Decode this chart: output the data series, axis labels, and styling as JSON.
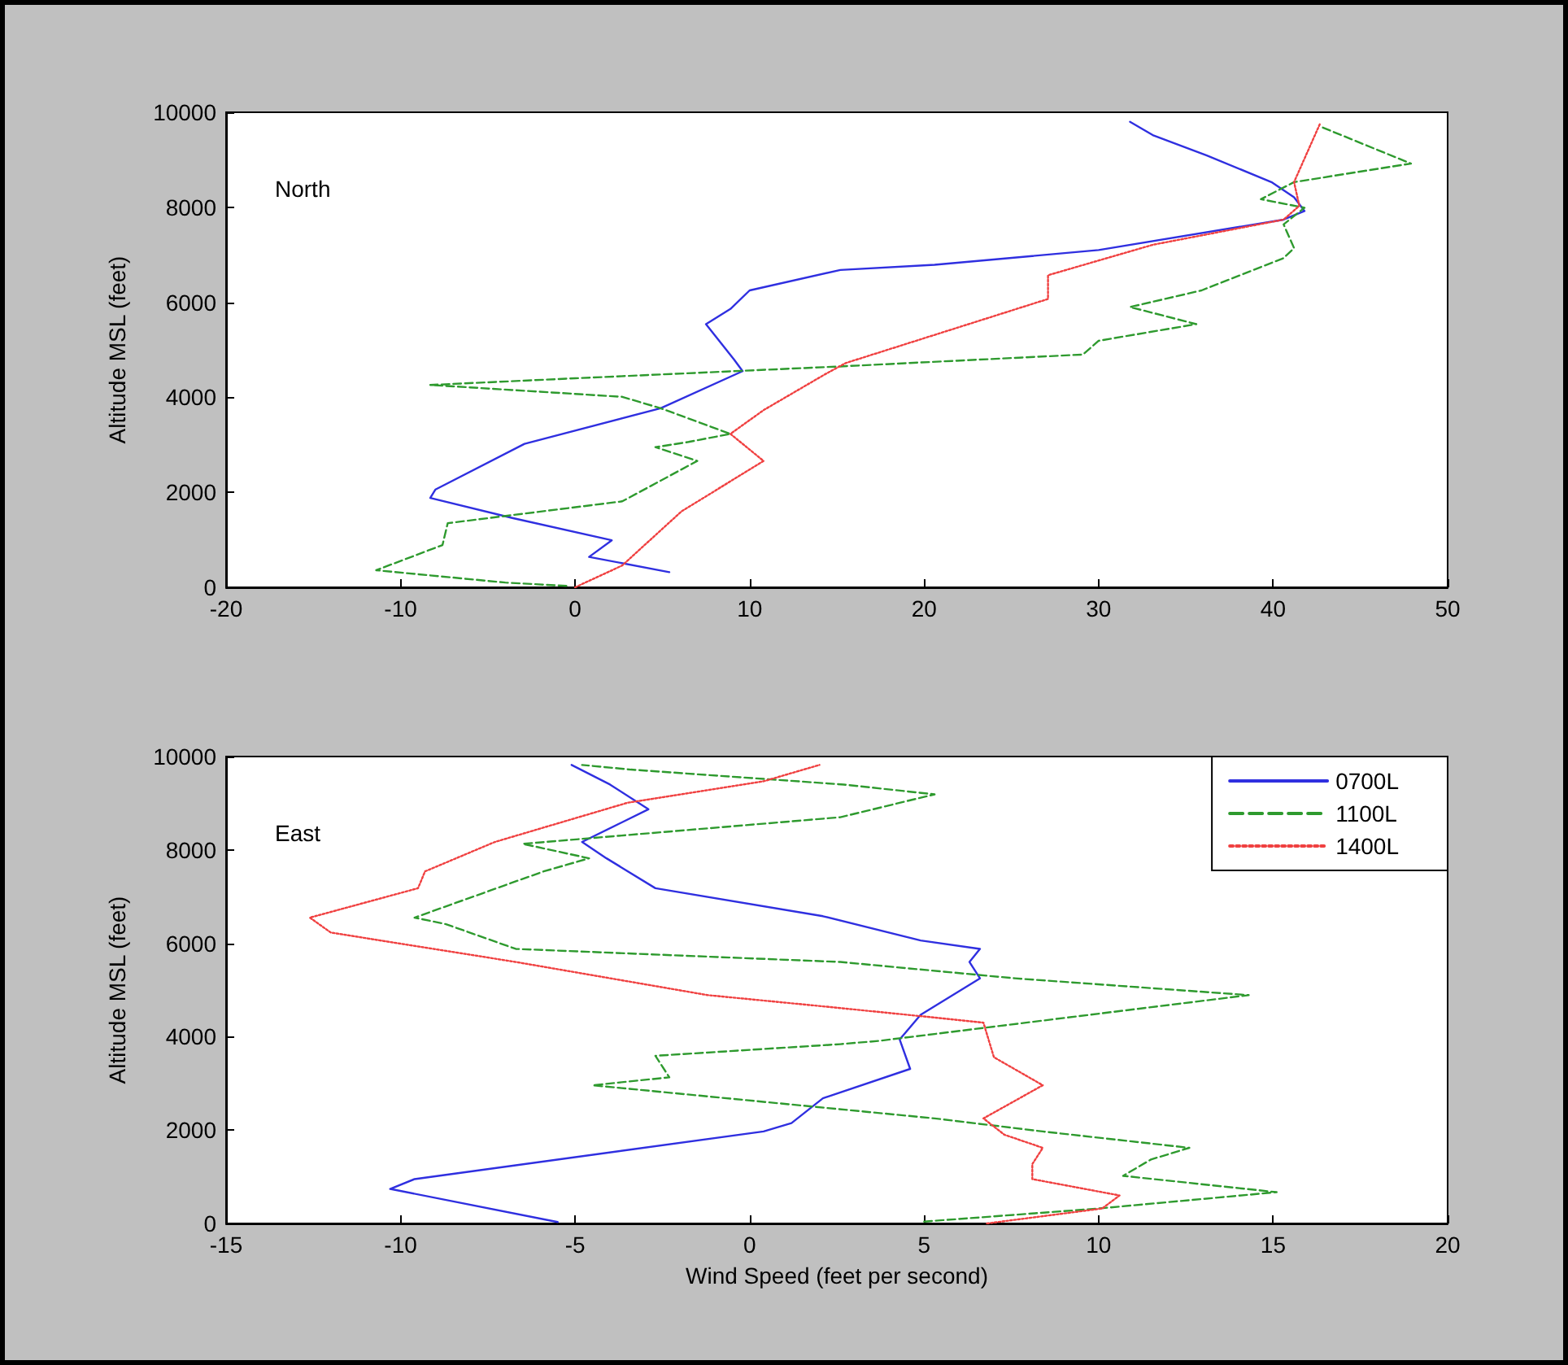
{
  "chart_data": [
    {
      "type": "line",
      "ylabel": "Altitude MSL (feet)",
      "annotations": [
        "North"
      ],
      "xlim": [
        -20,
        50
      ],
      "xticks": [
        -20,
        -10,
        0,
        10,
        20,
        30,
        40,
        50
      ],
      "ylim": [
        0,
        10000
      ],
      "yticks": [
        0,
        2000,
        4000,
        6000,
        8000,
        10000
      ],
      "grid": false,
      "series": [
        {
          "color": "#2f2fe0",
          "line_style": "solid",
          "x": [
            5.4,
            0.8,
            2.1,
            -3.6,
            -8.3,
            -8.0,
            -2.9,
            4.9,
            9.6,
            9.1,
            7.5,
            8.9,
            10.0,
            15.2,
            20.6,
            30.0,
            40.6,
            41.8,
            41.2,
            39.9,
            36.2,
            33.1,
            31.8
          ],
          "values": [
            320,
            640,
            990,
            1460,
            1880,
            2060,
            3020,
            3770,
            4550,
            4800,
            5540,
            5860,
            6250,
            6680,
            6790,
            7100,
            7740,
            7920,
            8210,
            8530,
            9090,
            9520,
            9800
          ]
        },
        {
          "color": "#2e9a2e",
          "line_style": "dashed",
          "x": [
            -0.5,
            -4.0,
            -11.4,
            -7.6,
            -7.3,
            2.7,
            7.0,
            4.6,
            6.5,
            8.9,
            4.9,
            2.7,
            -8.3,
            0.0,
            15.2,
            29.1,
            30.0,
            35.6,
            31.8,
            35.9,
            40.6,
            41.2,
            40.6,
            41.8,
            39.3,
            41.2,
            47.9,
            42.7
          ],
          "values": [
            30,
            100,
            360,
            890,
            1350,
            1810,
            2660,
            2950,
            3060,
            3230,
            3770,
            4010,
            4260,
            4400,
            4650,
            4900,
            5190,
            5540,
            5900,
            6250,
            6930,
            7140,
            7640,
            7990,
            8170,
            8530,
            8920,
            9700
          ]
        },
        {
          "color": "#f04040",
          "line_style": "dotted",
          "x": [
            0.0,
            2.7,
            6.1,
            10.8,
            8.9,
            10.8,
            14.3,
            15.5,
            27.1,
            27.1,
            33.1,
            40.6,
            41.5,
            41.2,
            42.7
          ],
          "values": [
            0,
            460,
            1600,
            2660,
            3230,
            3730,
            4480,
            4720,
            6070,
            6570,
            7210,
            7740,
            8030,
            8530,
            9770
          ]
        }
      ]
    },
    {
      "type": "line",
      "xlabel": "Wind Speed (feet per second)",
      "ylabel": "Altitude MSL (feet)",
      "annotations": [
        "East"
      ],
      "xlim": [
        -15,
        20
      ],
      "xticks": [
        -15,
        -10,
        -5,
        0,
        5,
        10,
        15,
        20
      ],
      "ylim": [
        0,
        10000
      ],
      "yticks": [
        0,
        2000,
        4000,
        6000,
        8000,
        10000
      ],
      "grid": false,
      "legend": "top right",
      "series": [
        {
          "name": "0700L",
          "color": "#2f2fe0",
          "line_style": "solid",
          "x": [
            -5.5,
            -10.3,
            -9.6,
            0.4,
            1.2,
            2.1,
            4.6,
            4.3,
            4.9,
            6.6,
            6.3,
            6.6,
            4.9,
            2.1,
            -2.7,
            -4.1,
            -4.8,
            -2.9,
            -4.0,
            -5.1
          ],
          "values": [
            30,
            740,
            950,
            1970,
            2150,
            2680,
            3310,
            3940,
            4470,
            5250,
            5600,
            5880,
            6060,
            6580,
            7180,
            7820,
            8170,
            8870,
            9400,
            9820
          ]
        },
        {
          "name": "1100L",
          "color": "#2e9a2e",
          "line_style": "dashed",
          "x": [
            5.0,
            10.0,
            15.1,
            10.7,
            11.5,
            12.6,
            8.4,
            5.3,
            -4.5,
            -2.3,
            -2.7,
            2.6,
            3.7,
            14.3,
            7.6,
            2.6,
            -6.7,
            -8.7,
            -9.6,
            -5.9,
            -4.6,
            -6.5,
            2.6,
            5.3,
            2.7,
            -3.4,
            -4.8
          ],
          "values": [
            40,
            320,
            670,
            1020,
            1370,
            1620,
            1970,
            2250,
            2960,
            3130,
            3590,
            3840,
            3910,
            4890,
            5250,
            5600,
            5880,
            6410,
            6550,
            7540,
            7820,
            8130,
            8700,
            9190,
            9400,
            9720,
            9820
          ]
        },
        {
          "name": "1400L",
          "color": "#f04040",
          "line_style": "dotted",
          "x": [
            6.8,
            10.1,
            10.6,
            8.1,
            8.1,
            8.4,
            7.3,
            6.7,
            8.4,
            7.0,
            6.7,
            4.9,
            2.1,
            -1.2,
            -6.7,
            -12.0,
            -12.6,
            -9.5,
            -9.3,
            -7.3,
            -3.5,
            0.4,
            2.0
          ],
          "values": [
            0,
            320,
            600,
            950,
            1270,
            1620,
            1900,
            2250,
            2960,
            3560,
            4300,
            4440,
            4650,
            4890,
            5600,
            6230,
            6550,
            7180,
            7540,
            8170,
            9010,
            9470,
            9820
          ]
        }
      ]
    }
  ]
}
